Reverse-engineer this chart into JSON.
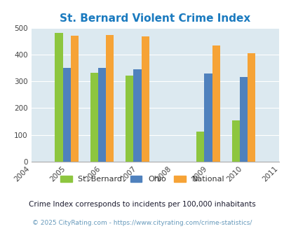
{
  "title": "St. Bernard Violent Crime Index",
  "years": [
    2004,
    2005,
    2006,
    2007,
    2008,
    2009,
    2010,
    2011
  ],
  "bar_years": [
    2005,
    2006,
    2007,
    2009,
    2010
  ],
  "st_bernard": [
    480,
    332,
    321,
    113,
    153
  ],
  "ohio": [
    350,
    351,
    345,
    330,
    315
  ],
  "national": [
    470,
    472,
    467,
    433,
    406
  ],
  "color_st_bernard": "#8dc63f",
  "color_ohio": "#4f81bd",
  "color_national": "#f6a336",
  "bg_color": "#dce9f0",
  "ylim": [
    0,
    500
  ],
  "yticks": [
    0,
    100,
    200,
    300,
    400,
    500
  ],
  "legend_labels": [
    "St. Bernard",
    "Ohio",
    "National"
  ],
  "subtitle": "Crime Index corresponds to incidents per 100,000 inhabitants",
  "footer": "© 2025 CityRating.com - https://www.cityrating.com/crime-statistics/",
  "title_color": "#1a7abf",
  "subtitle_color": "#1a1a2e",
  "footer_color": "#6699bb",
  "bar_width": 0.22
}
